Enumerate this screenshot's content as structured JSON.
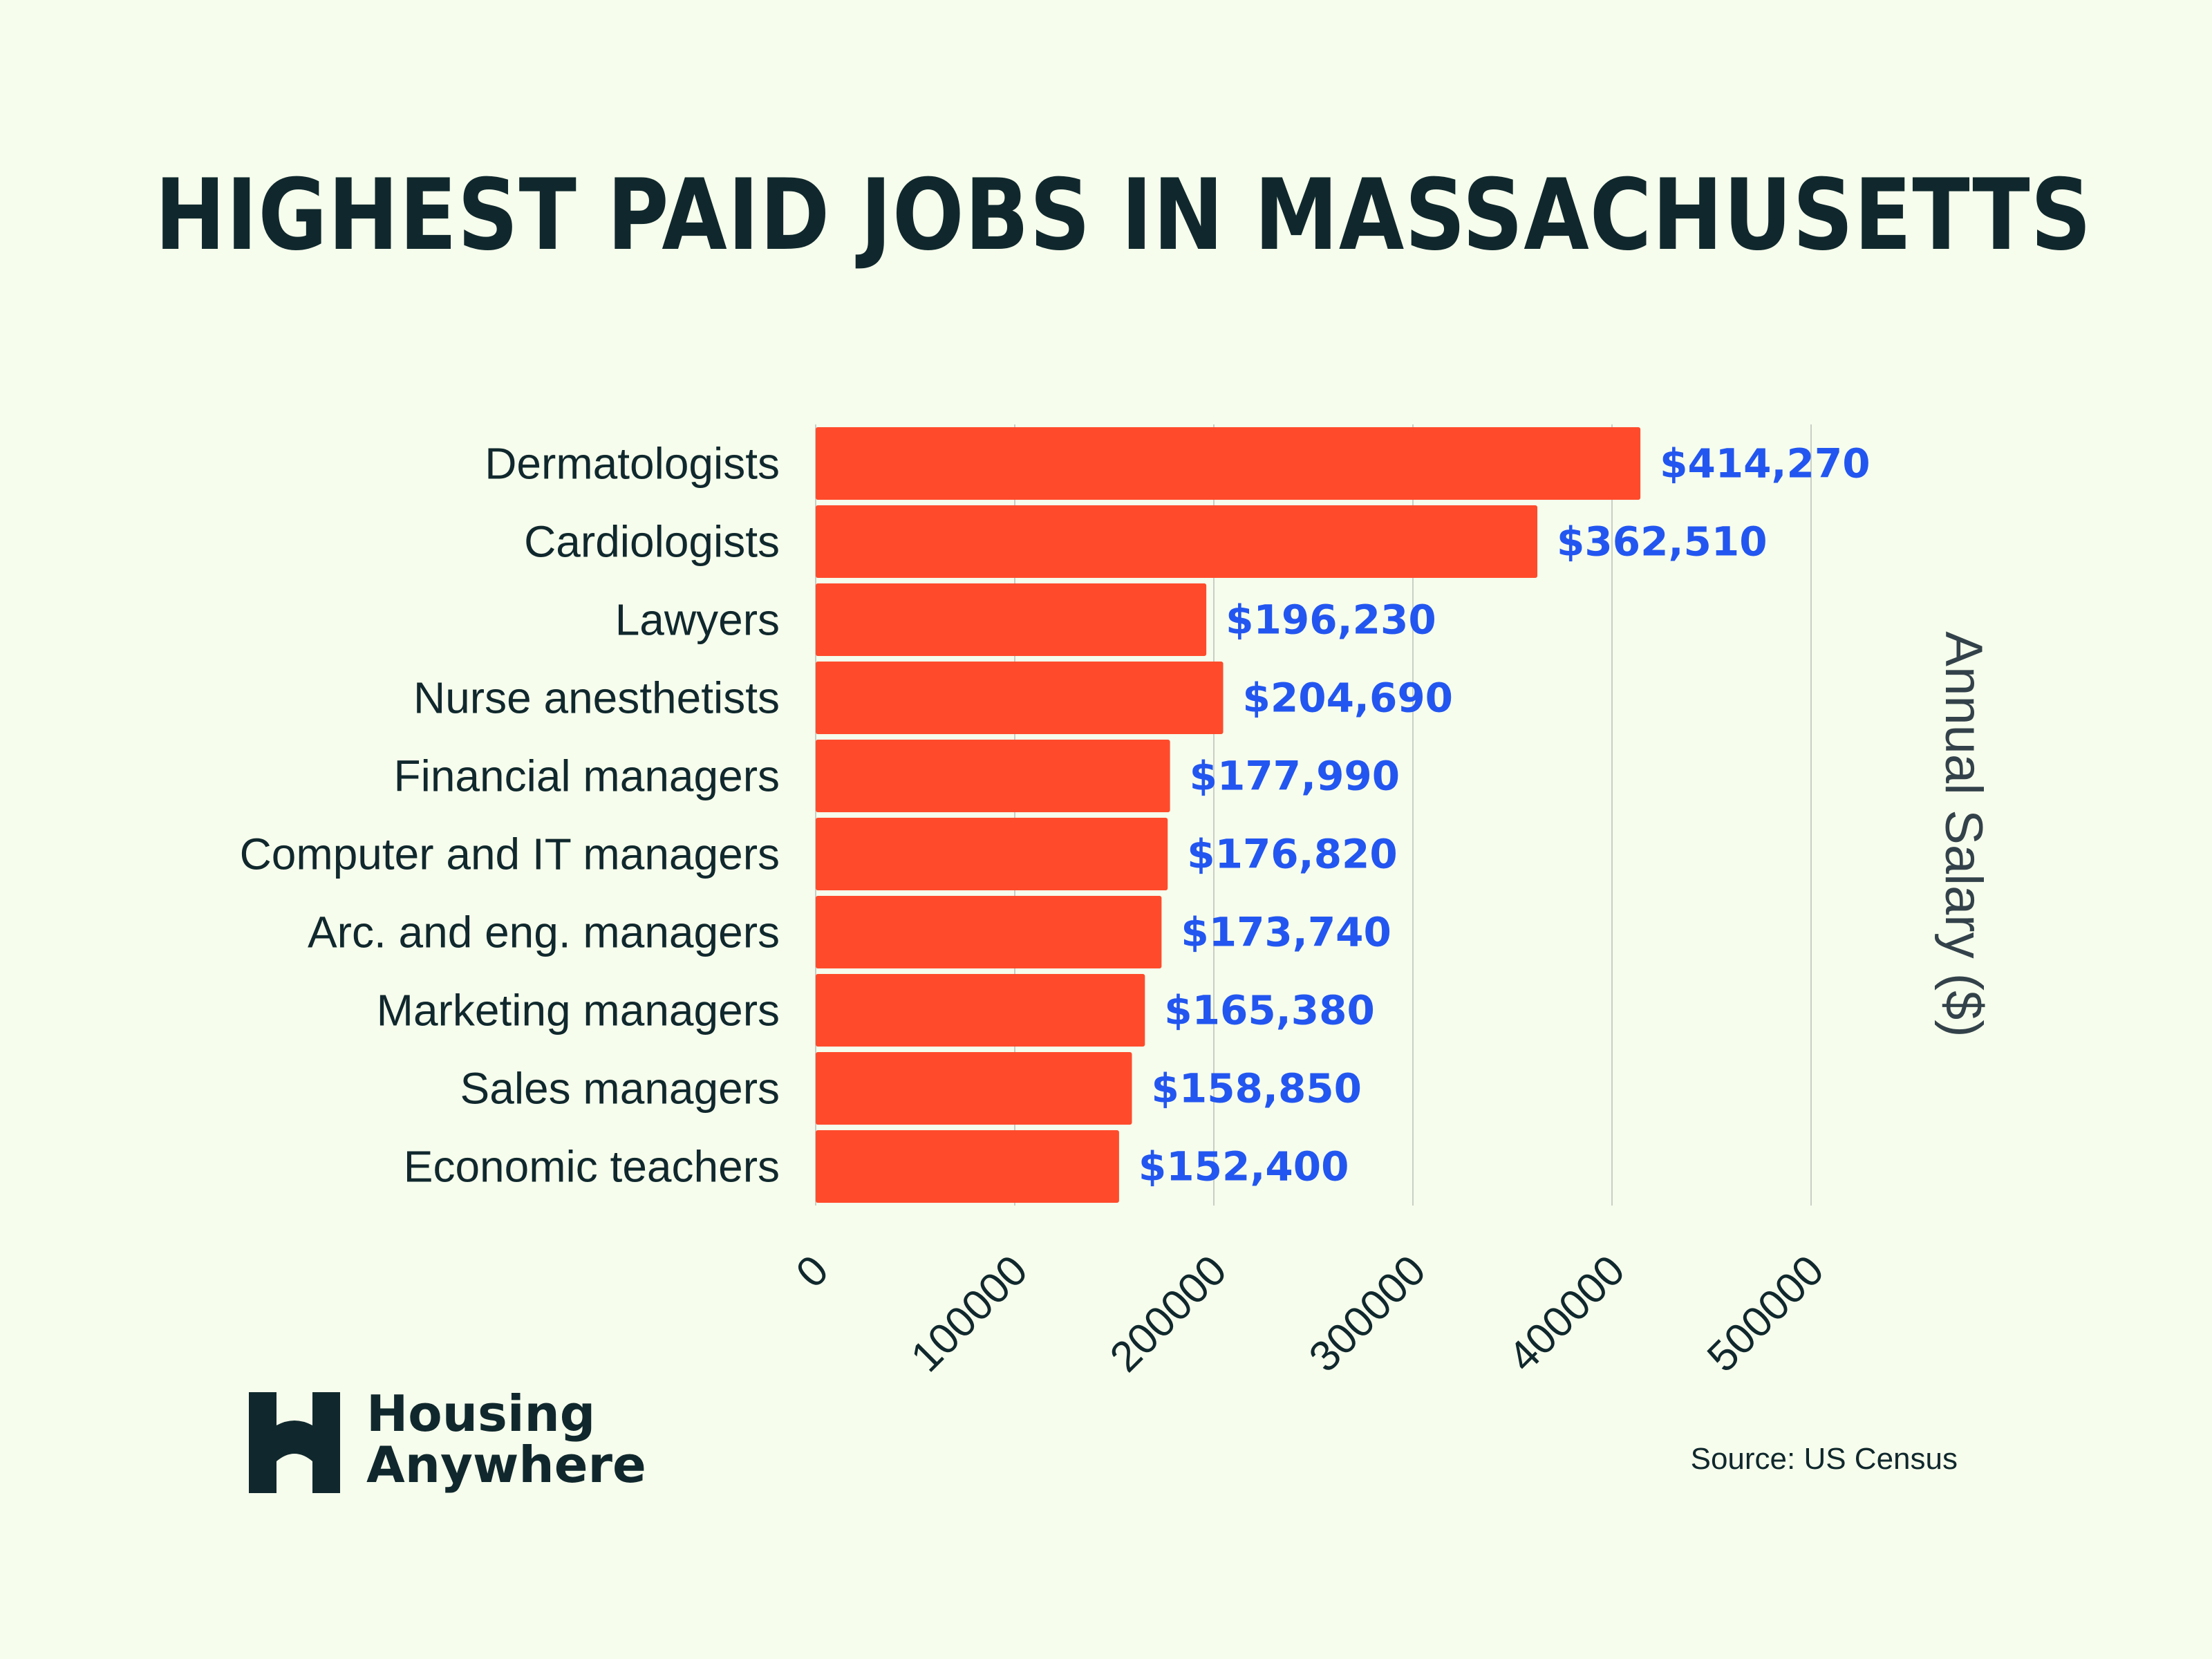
{
  "brand": {
    "name_line1": "Housing",
    "name_line2": "Anywhere",
    "logo_icon": "arch-h-logo"
  },
  "source": "Source: US Census",
  "colors": {
    "background": "#f6fdec",
    "bar": "#ff4b2b",
    "value_label": "#2356f0",
    "text": "#10282d",
    "grid": "#c9cfc6"
  },
  "chart_data": {
    "type": "bar",
    "orientation": "horizontal",
    "title": "HIGHEST PAID JOBS IN MASSACHUSETTS",
    "xlabel": "Annual Salary ($)",
    "ylabel": "",
    "categories": [
      "Dermatologists",
      "Cardiologists",
      "Lawyers",
      "Nurse anesthetists",
      "Financial managers",
      "Computer and IT managers",
      "Arc. and eng. managers",
      "Marketing managers",
      "Sales managers",
      "Economic teachers"
    ],
    "values": [
      414270,
      362510,
      196230,
      204690,
      177990,
      176820,
      173740,
      165380,
      158850,
      152400
    ],
    "value_labels": [
      "$414,270",
      "$362,510",
      "$196,230",
      "$204,690",
      "$177,990",
      "$176,820",
      "$173,740",
      "$165,380",
      "$158,850",
      "$152,400"
    ],
    "xlim": [
      0,
      500000
    ],
    "xticks": [
      0,
      100000,
      200000,
      300000,
      400000,
      500000
    ],
    "xtick_labels": [
      "0",
      "100000",
      "200000",
      "300000",
      "400000",
      "500000"
    ],
    "grid": true,
    "legend": "none"
  }
}
